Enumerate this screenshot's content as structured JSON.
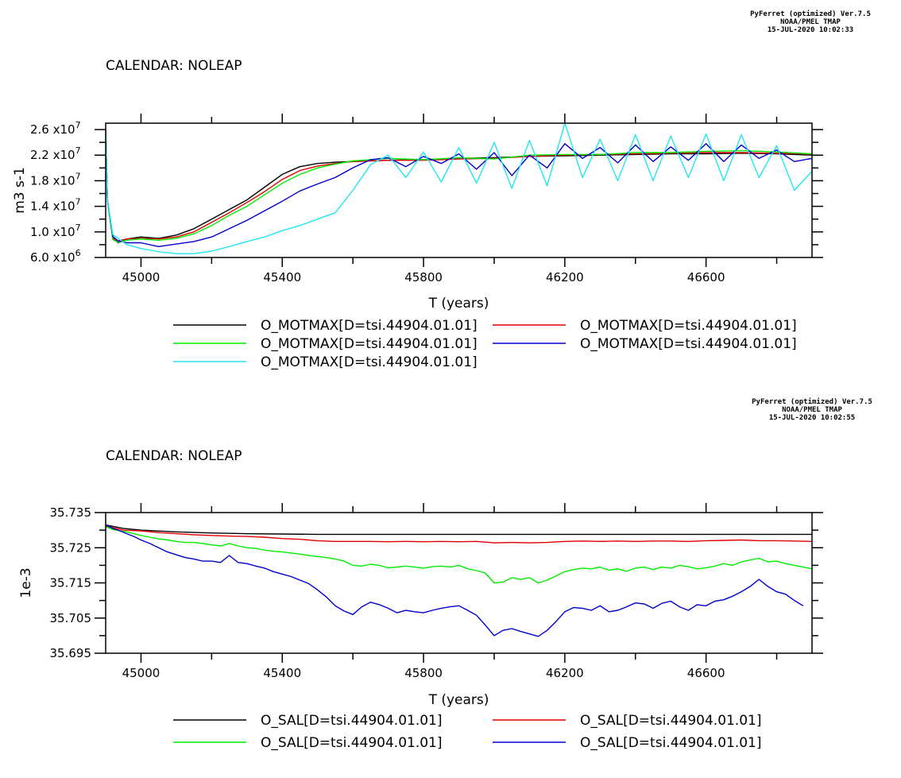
{
  "colors": {
    "black": "#000000",
    "red": "#e00000",
    "green": "#00ee00",
    "blue": "#0000cc",
    "cyan": "#22e6f0"
  },
  "chart_data": [
    {
      "type": "line",
      "stamp": [
        "PyFerret (optimized) Ver.7.5",
        "NOAA/PMEL TMAP",
        "15-JUL-2020 10:02:33"
      ],
      "calendar": "CALENDAR: NOLEAP",
      "xlabel": "T (years)",
      "ylabel": "m3 s-1",
      "xlim": [
        44900,
        46900
      ],
      "ylim": [
        6000000,
        27000000
      ],
      "xticks": [
        45000,
        45400,
        45800,
        46200,
        46600
      ],
      "xtick_labels": [
        "45000",
        "45400",
        "45800",
        "46200",
        "46600"
      ],
      "yticks": [
        6000000,
        10000000,
        14000000,
        18000000,
        22000000,
        26000000
      ],
      "ytick_labels": [
        [
          "6.0 x10",
          "6"
        ],
        [
          "1.0 x10",
          "7"
        ],
        [
          "1.4 x10",
          "7"
        ],
        [
          "1.8 x10",
          "7"
        ],
        [
          "2.2 x10",
          "7"
        ],
        [
          "2.6 x10",
          "7"
        ]
      ],
      "series": [
        {
          "name": "O_MOTMAX[D=tsi.44904.01.01]",
          "color": "#000000",
          "x": [
            44900,
            44905,
            44920,
            44935,
            44960,
            45000,
            45050,
            45100,
            45150,
            45200,
            45250,
            45300,
            45350,
            45400,
            45450,
            45500,
            45550,
            45600,
            45700,
            45800,
            45900,
            46000,
            46100,
            46200,
            46300,
            46400,
            46500,
            46600,
            46700,
            46800,
            46900
          ],
          "y": [
            26000000,
            15000000,
            9200000,
            8300000,
            8900000,
            9200000,
            9000000,
            9500000,
            10500000,
            12000000,
            13500000,
            15000000,
            17000000,
            19000000,
            20200000,
            20700000,
            20900000,
            21000000,
            21200000,
            21300000,
            21500000,
            21600000,
            21800000,
            21900000,
            22000000,
            22100000,
            22200000,
            22200000,
            22300000,
            22200000,
            22000000
          ]
        },
        {
          "name": "O_MOTMAX[D=tsi.44904.01.01]",
          "color": "#e00000",
          "x": [
            44900,
            44905,
            44920,
            44935,
            44960,
            45000,
            45050,
            45100,
            45150,
            45200,
            45250,
            45300,
            45350,
            45400,
            45450,
            45500,
            45550,
            45600,
            45700,
            45800,
            45900,
            46000,
            46100,
            46200,
            46300,
            46400,
            46500,
            46600,
            46700,
            46800,
            46900
          ],
          "y": [
            26000000,
            15000000,
            9000000,
            8600000,
            8900000,
            9000000,
            8900000,
            9200000,
            10000000,
            11500000,
            13000000,
            14600000,
            16300000,
            18200000,
            19600000,
            20300000,
            20700000,
            21000000,
            21200000,
            21200000,
            21400000,
            21500000,
            21800000,
            22000000,
            22100000,
            22200000,
            22300000,
            22400000,
            22400000,
            22300000,
            22200000
          ]
        },
        {
          "name": "O_MOTMAX[D=tsi.44904.01.01]",
          "color": "#00ee00",
          "x": [
            44900,
            44905,
            44920,
            44935,
            44960,
            45000,
            45050,
            45100,
            45150,
            45200,
            45250,
            45300,
            45350,
            45400,
            45450,
            45500,
            45550,
            45600,
            45700,
            45800,
            45900,
            46000,
            46100,
            46200,
            46300,
            46400,
            46500,
            46600,
            46700,
            46800,
            46900
          ],
          "y": [
            26000000,
            15000000,
            8800000,
            8400000,
            8700000,
            8900000,
            8700000,
            9000000,
            9700000,
            11000000,
            12600000,
            14000000,
            15800000,
            17600000,
            19000000,
            20000000,
            20600000,
            21100000,
            21500000,
            21300000,
            21600000,
            21400000,
            22000000,
            22100000,
            22100000,
            22400000,
            22400000,
            22600000,
            22700000,
            22500000,
            22200000
          ]
        },
        {
          "name": "O_MOTMAX[D=tsi.44904.01.01]",
          "color": "#0000cc",
          "x": [
            44900,
            44905,
            44920,
            44935,
            44960,
            45000,
            45050,
            45100,
            45150,
            45200,
            45250,
            45300,
            45350,
            45400,
            45450,
            45500,
            45550,
            45600,
            45650,
            45700,
            45750,
            45800,
            45850,
            45900,
            45950,
            46000,
            46050,
            46100,
            46150,
            46200,
            46250,
            46300,
            46350,
            46400,
            46450,
            46500,
            46550,
            46600,
            46650,
            46700,
            46750,
            46800,
            46850,
            46900
          ],
          "y": [
            26000000,
            15000000,
            9300000,
            8600000,
            8300000,
            8300000,
            7700000,
            8100000,
            8500000,
            9200000,
            10500000,
            11800000,
            13300000,
            14800000,
            16400000,
            17500000,
            18500000,
            20000000,
            21300000,
            21600000,
            20200000,
            21800000,
            20700000,
            22200000,
            19800000,
            22400000,
            18800000,
            22000000,
            20000000,
            23800000,
            21500000,
            23200000,
            20800000,
            23600000,
            21000000,
            23300000,
            21200000,
            23800000,
            21000000,
            23600000,
            21500000,
            22800000,
            21000000,
            21500000
          ]
        },
        {
          "name": "O_MOTMAX[D=tsi.44904.01.01]",
          "color": "#22e6f0",
          "x": [
            44900,
            44905,
            44920,
            44935,
            44960,
            45000,
            45050,
            45100,
            45150,
            45200,
            45250,
            45300,
            45350,
            45400,
            45450,
            45500,
            45550,
            45600,
            45650,
            45700,
            45750,
            45800,
            45850,
            45900,
            45950,
            46000,
            46050,
            46100,
            46150,
            46200,
            46250,
            46300,
            46350,
            46400,
            46450,
            46500,
            46550,
            46600,
            46650,
            46700,
            46750,
            46800,
            46850,
            46900
          ],
          "y": [
            26000000,
            15000000,
            9600000,
            9000000,
            8000000,
            7400000,
            6900000,
            6600000,
            6600000,
            7000000,
            7700000,
            8500000,
            9200000,
            10200000,
            11000000,
            12000000,
            13000000,
            16500000,
            20500000,
            22000000,
            18500000,
            22500000,
            17800000,
            23200000,
            17600000,
            24000000,
            16800000,
            24300000,
            17200000,
            27000000,
            18500000,
            24500000,
            18000000,
            25200000,
            18000000,
            25000000,
            18500000,
            25300000,
            18000000,
            25200000,
            18500000,
            23500000,
            16500000,
            19500000
          ]
        }
      ]
    },
    {
      "type": "line",
      "stamp": [
        "PyFerret (optimized) Ver.7.5",
        "NOAA/PMEL TMAP",
        "15-JUL-2020 10:02:55"
      ],
      "calendar": "CALENDAR: NOLEAP",
      "xlabel": "T (years)",
      "ylabel": "1e-3",
      "xlim": [
        44900,
        46900
      ],
      "ylim": [
        35.695,
        35.735
      ],
      "xticks": [
        45000,
        45400,
        45800,
        46200,
        46600
      ],
      "xtick_labels": [
        "45000",
        "45400",
        "45800",
        "46200",
        "46600"
      ],
      "yticks": [
        35.695,
        35.705,
        35.715,
        35.725,
        35.735
      ],
      "ytick_labels": [
        "35.695",
        "35.705",
        "35.715",
        "35.725",
        "35.735"
      ],
      "series": [
        {
          "name": "O_SAL[D=tsi.44904.01.01]",
          "color": "#000000",
          "x": [
            44900,
            44950,
            45000,
            45100,
            45200,
            45300,
            45400,
            45500,
            45600,
            45700,
            45800,
            45900,
            46000,
            46200,
            46400,
            46600,
            46800,
            46900
          ],
          "y": [
            35.7315,
            35.7305,
            35.73,
            35.7295,
            35.7292,
            35.729,
            35.7289,
            35.7288,
            35.7288,
            35.7288,
            35.7288,
            35.7288,
            35.7288,
            35.7288,
            35.7288,
            35.7288,
            35.7288,
            35.7288
          ]
        },
        {
          "name": "O_SAL[D=tsi.44904.01.01]",
          "color": "#e00000",
          "x": [
            44900,
            44950,
            45000,
            45050,
            45100,
            45150,
            45200,
            45250,
            45300,
            45350,
            45400,
            45450,
            45500,
            45550,
            45600,
            45650,
            45700,
            45750,
            45800,
            45850,
            45900,
            45950,
            46000,
            46050,
            46100,
            46150,
            46200,
            46250,
            46300,
            46350,
            46400,
            46450,
            46500,
            46550,
            46600,
            46650,
            46700,
            46750,
            46800,
            46850,
            46900
          ],
          "y": [
            35.7312,
            35.73,
            35.7298,
            35.7293,
            35.729,
            35.7287,
            35.7285,
            35.7283,
            35.7282,
            35.728,
            35.7276,
            35.7274,
            35.727,
            35.7268,
            35.7268,
            35.7268,
            35.7267,
            35.7268,
            35.7267,
            35.7268,
            35.7267,
            35.7268,
            35.7264,
            35.7265,
            35.7264,
            35.7265,
            35.7268,
            35.7269,
            35.7268,
            35.7269,
            35.7268,
            35.7269,
            35.7269,
            35.7268,
            35.727,
            35.7271,
            35.7272,
            35.727,
            35.727,
            35.7269,
            35.7268
          ]
        },
        {
          "name": "O_SAL[D=tsi.44904.01.01]",
          "color": "#00ee00",
          "x": [
            44900,
            44920,
            44940,
            44960,
            44980,
            45000,
            45025,
            45050,
            45075,
            45100,
            45125,
            45150,
            45175,
            45200,
            45225,
            45250,
            45275,
            45300,
            45325,
            45350,
            45375,
            45400,
            45425,
            45450,
            45475,
            45500,
            45525,
            45550,
            45575,
            45600,
            45625,
            45650,
            45675,
            45700,
            45725,
            45750,
            45775,
            45800,
            45825,
            45850,
            45875,
            45900,
            45925,
            45950,
            45975,
            46000,
            46025,
            46050,
            46075,
            46100,
            46125,
            46150,
            46175,
            46200,
            46225,
            46250,
            46275,
            46300,
            46325,
            46350,
            46375,
            46400,
            46425,
            46450,
            46475,
            46500,
            46525,
            46550,
            46575,
            46600,
            46625,
            46650,
            46675,
            46700,
            46725,
            46750,
            46775,
            46800,
            46825,
            46850,
            46875,
            46900
          ],
          "y": [
            35.731,
            35.7302,
            35.7298,
            35.7295,
            35.729,
            35.7285,
            35.728,
            35.7275,
            35.7272,
            35.7268,
            35.7265,
            35.7265,
            35.7262,
            35.7258,
            35.7255,
            35.7262,
            35.7255,
            35.725,
            35.7248,
            35.7243,
            35.724,
            35.7238,
            35.7235,
            35.7232,
            35.7228,
            35.7225,
            35.7222,
            35.7218,
            35.7212,
            35.72,
            35.7198,
            35.7203,
            35.72,
            35.7193,
            35.7195,
            35.7198,
            35.7195,
            35.7192,
            35.7196,
            35.7198,
            35.7195,
            35.72,
            35.719,
            35.7185,
            35.7178,
            35.715,
            35.7152,
            35.7165,
            35.716,
            35.7165,
            35.715,
            35.7158,
            35.717,
            35.7182,
            35.7188,
            35.7192,
            35.719,
            35.7195,
            35.7186,
            35.719,
            35.7183,
            35.7192,
            35.7195,
            35.7188,
            35.7195,
            35.7192,
            35.72,
            35.7196,
            35.719,
            35.7193,
            35.7198,
            35.7205,
            35.72,
            35.721,
            35.7215,
            35.722,
            35.721,
            35.7212,
            35.7205,
            35.72,
            35.7195,
            35.719
          ]
        },
        {
          "name": "O_SAL[D=tsi.44904.01.01]",
          "color": "#0000cc",
          "x": [
            44900,
            44920,
            44940,
            44960,
            44980,
            45000,
            45025,
            45050,
            45075,
            45100,
            45125,
            45150,
            45175,
            45200,
            45225,
            45250,
            45275,
            45300,
            45325,
            45350,
            45375,
            45400,
            45425,
            45450,
            45475,
            45500,
            45525,
            45550,
            45575,
            45600,
            45625,
            45650,
            45675,
            45700,
            45725,
            45750,
            45775,
            45800,
            45825,
            45850,
            45875,
            45900,
            45925,
            45950,
            45975,
            46000,
            46025,
            46050,
            46075,
            46100,
            46125,
            46150,
            46175,
            46200,
            46225,
            46250,
            46275,
            46300,
            46325,
            46350,
            46375,
            46400,
            46425,
            46450,
            46475,
            46500,
            46525,
            46550,
            46575,
            46600,
            46625,
            46650,
            46675,
            46700,
            46725,
            46750,
            46775,
            46800,
            46825,
            46850,
            46875
          ],
          "y": [
            35.7315,
            35.7305,
            35.7298,
            35.729,
            35.7282,
            35.7272,
            35.7262,
            35.725,
            35.7238,
            35.723,
            35.7222,
            35.7218,
            35.7212,
            35.7212,
            35.7208,
            35.7228,
            35.7208,
            35.7205,
            35.7198,
            35.7192,
            35.7182,
            35.7175,
            35.7168,
            35.7158,
            35.7148,
            35.713,
            35.711,
            35.7085,
            35.707,
            35.706,
            35.7082,
            35.7095,
            35.7088,
            35.7078,
            35.7065,
            35.7072,
            35.7068,
            35.7065,
            35.7072,
            35.7078,
            35.7082,
            35.7085,
            35.7072,
            35.7058,
            35.703,
            35.7,
            35.7015,
            35.702,
            35.7012,
            35.7005,
            35.6998,
            35.7015,
            35.704,
            35.7068,
            35.708,
            35.7078,
            35.7072,
            35.7085,
            35.7068,
            35.7072,
            35.7082,
            35.7093,
            35.709,
            35.7078,
            35.7092,
            35.7098,
            35.7082,
            35.7072,
            35.7088,
            35.7085,
            35.7098,
            35.7102,
            35.7112,
            35.7125,
            35.714,
            35.716,
            35.714,
            35.7125,
            35.7118,
            35.71,
            35.7085
          ]
        }
      ]
    }
  ]
}
